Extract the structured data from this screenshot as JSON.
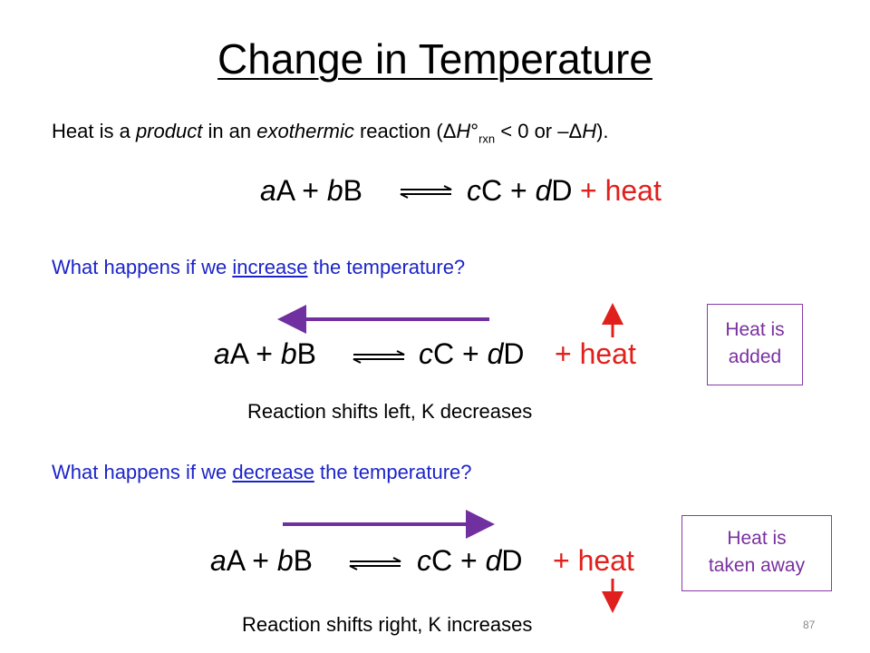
{
  "title": "Change in Temperature",
  "intro": [
    "Heat is a ",
    "product",
    " in an ",
    "exothermic",
    " reaction (",
    "Δ",
    "H",
    "°",
    "rxn",
    " < 0 or –",
    "Δ",
    "H",
    ")."
  ],
  "equations": [
    {
      "left": [
        "a",
        "A + ",
        "b",
        "B"
      ],
      "right": [
        "c",
        "C + ",
        "d",
        "D"
      ],
      "heat": "+ heat"
    },
    {
      "left": [
        "a",
        "A + ",
        "b",
        "B"
      ],
      "right": [
        "c",
        "C + ",
        "d",
        "D"
      ],
      "heat": "+ heat"
    },
    {
      "left": [
        "a",
        "A + ",
        "b",
        "B"
      ],
      "right": [
        "c",
        "C + ",
        "d",
        "D"
      ],
      "heat": "+ heat"
    }
  ],
  "questions": [
    [
      "What happens if we ",
      "increase",
      " the temperature?"
    ],
    [
      "What happens if we ",
      "decrease",
      " the temperature?"
    ]
  ],
  "results": [
    "Reaction shifts left, K decreases",
    "Reaction shifts right, K increases"
  ],
  "boxes": [
    [
      "Heat is",
      "added"
    ],
    [
      "Heat is",
      "taken away"
    ]
  ],
  "page_number": "87"
}
